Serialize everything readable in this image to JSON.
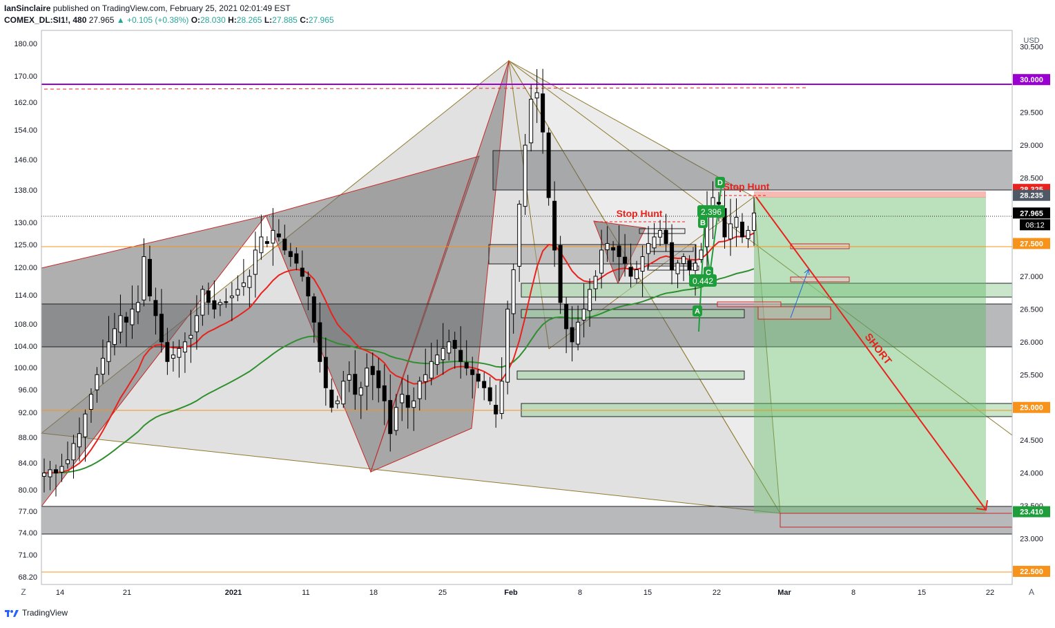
{
  "header": {
    "author": "IanSinclaire",
    "published": "published on TradingView.com, February 25, 2021 02:01:49 EST",
    "symbol": "COMEX_DL:SI1!, 480",
    "last": "27.965",
    "change": "▲ +0.105 (+0.38%)",
    "o_label": "O:",
    "o_val": "28.030",
    "h_label": "H:",
    "h_val": "28.265",
    "l_label": "L:",
    "l_val": "27.885",
    "c_label": "C:",
    "c_val": "27.965"
  },
  "footer": {
    "brand": "TradingView"
  },
  "toolbar": {
    "left": "Z",
    "right": "A",
    "currency": "USD"
  },
  "colors": {
    "up_candle": "#ffffff",
    "down_candle": "#000000",
    "ema_fast": "#e8221c",
    "ema_slow": "#2f8f2f",
    "resistance": "#9b00d3",
    "orange_line": "#f7931a",
    "pattern_fill": "#808080",
    "target_zone": "#4caf50",
    "stop_zone": "#f28b82",
    "short_arrow": "#e8221c"
  },
  "chart_data": {
    "type": "candlestick",
    "title": "",
    "xlabel": "",
    "ylabel": "USD",
    "x_ticks": [
      "14",
      "21",
      "2021",
      "11",
      "18",
      "25",
      "Feb",
      "8",
      "15",
      "22",
      "Mar",
      "8",
      "15",
      "22"
    ],
    "y_right_ticks": [
      "30.500",
      "30.000",
      "29.500",
      "29.000",
      "28.500",
      "28.000",
      "27.500",
      "27.000",
      "26.500",
      "26.000",
      "25.500",
      "25.000",
      "24.500",
      "24.000",
      "23.500",
      "23.000",
      "22.500"
    ],
    "y_left_ticks": [
      "180.00",
      "170.00",
      "162.00",
      "154.00",
      "146.00",
      "138.00",
      "130.00",
      "125.00",
      "120.00",
      "114.00",
      "108.00",
      "104.00",
      "100.00",
      "96.00",
      "92.00",
      "88.00",
      "84.00",
      "80.00",
      "77.00",
      "74.00",
      "71.00",
      "68.20"
    ],
    "ylim_right": [
      22.3,
      30.75
    ],
    "price_labels": [
      {
        "value": 30.0,
        "text": "30.000",
        "color": "#9b00d3"
      },
      {
        "value": 28.325,
        "text": "28.325",
        "color": "#e8221c"
      },
      {
        "value": 28.235,
        "text": "28.235",
        "color": "#4f5966"
      },
      {
        "value": 27.965,
        "text": "27.965",
        "color": "#000000"
      },
      {
        "value": 27.5,
        "text": "27.500",
        "color": "#f7931a"
      },
      {
        "value": 25.0,
        "text": "25.000",
        "color": "#f7931a"
      },
      {
        "value": 23.41,
        "text": "23.410",
        "color": "#1e9e3a"
      },
      {
        "value": 22.5,
        "text": "22.500",
        "color": "#f7931a"
      }
    ],
    "countdown": "08:12",
    "annotations": [
      {
        "text": "Stop Hunt"
      },
      {
        "text": "Stop Hunt"
      },
      {
        "text": "SHORT"
      },
      {
        "text": "2.396"
      },
      {
        "text": "0.442"
      },
      {
        "text": "A"
      },
      {
        "text": "B"
      },
      {
        "text": "C"
      },
      {
        "text": "D"
      }
    ],
    "series": [
      {
        "kind": "ema_fast"
      },
      {
        "kind": "ema_slow"
      }
    ],
    "candles_close": [
      24.0,
      24.05,
      24.0,
      24.1,
      24.2,
      24.45,
      24.6,
      24.9,
      25.2,
      25.5,
      25.75,
      26.0,
      26.2,
      26.4,
      26.3,
      26.5,
      26.6,
      27.3,
      26.7,
      26.4,
      26.0,
      25.7,
      25.8,
      25.9,
      26.0,
      26.1,
      26.4,
      26.8,
      26.6,
      26.5,
      26.6,
      26.6,
      26.7,
      26.8,
      26.9,
      27.0,
      27.4,
      27.6,
      27.5,
      27.7,
      27.6,
      27.4,
      27.3,
      27.2,
      27.0,
      26.7,
      26.3,
      25.7,
      25.3,
      25.0,
      25.1,
      25.4,
      25.5,
      25.2,
      25.3,
      25.6,
      25.5,
      25.3,
      25.1,
      24.6,
      25.0,
      25.2,
      25.0,
      25.1,
      25.4,
      25.5,
      25.7,
      25.8,
      25.9,
      26.0,
      25.9,
      25.7,
      25.6,
      25.5,
      25.4,
      25.3,
      25.1,
      24.9,
      25.4,
      26.5,
      27.1,
      28.1,
      29.0,
      29.7,
      29.8,
      29.2,
      28.2,
      27.4,
      26.6,
      26.2,
      26.0,
      26.3,
      26.5,
      26.8,
      27.0,
      27.4,
      27.5,
      27.4,
      27.3,
      27.2,
      27.0,
      27.1,
      27.3,
      27.5,
      27.6,
      27.7,
      27.5,
      27.1,
      27.2,
      27.3,
      27.1,
      27.2,
      27.4,
      27.9,
      28.2,
      28.1,
      27.6,
      27.8,
      27.9,
      27.6,
      27.7,
      27.965
    ]
  }
}
